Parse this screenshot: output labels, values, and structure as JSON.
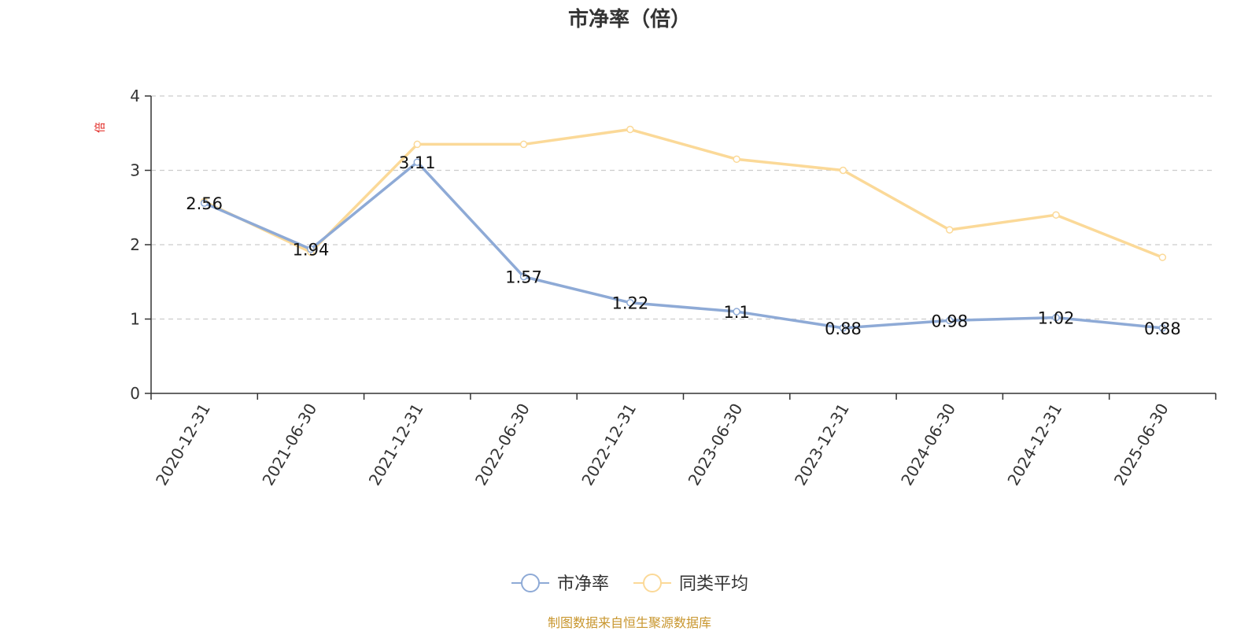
{
  "chart_data": {
    "type": "line",
    "title": "市净率（倍）",
    "ylabel": "倍",
    "xlabel": "",
    "categories": [
      "2020-12-31",
      "2021-06-30",
      "2021-12-31",
      "2022-06-30",
      "2022-12-31",
      "2023-06-30",
      "2023-12-31",
      "2024-06-30",
      "2024-12-31",
      "2025-06-30"
    ],
    "ylim": [
      0,
      4
    ],
    "yticks": [
      "0",
      "1",
      "2",
      "3",
      "4"
    ],
    "grid": "horizontal dashed",
    "legend_position": "bottom",
    "series": [
      {
        "name": "市净率",
        "color": "#8eaad6",
        "values": [
          2.56,
          1.94,
          3.11,
          1.57,
          1.22,
          1.1,
          0.88,
          0.98,
          1.02,
          0.88
        ],
        "labels": [
          "2.56",
          "1.94",
          "3.11",
          "1.57",
          "1.22",
          "1.1",
          "0.88",
          "0.98",
          "1.02",
          "0.88"
        ]
      },
      {
        "name": "同类平均",
        "color": "#fbd998",
        "values": [
          2.58,
          1.9,
          3.35,
          3.35,
          3.55,
          3.15,
          3.0,
          2.2,
          2.4,
          1.83
        ]
      }
    ]
  },
  "source_note": "制图数据来自恒生聚源数据库",
  "colors": {
    "axis": "#333333",
    "grid": "#cccccc",
    "ylabel": "#e0201b",
    "source": "#c8962e"
  }
}
